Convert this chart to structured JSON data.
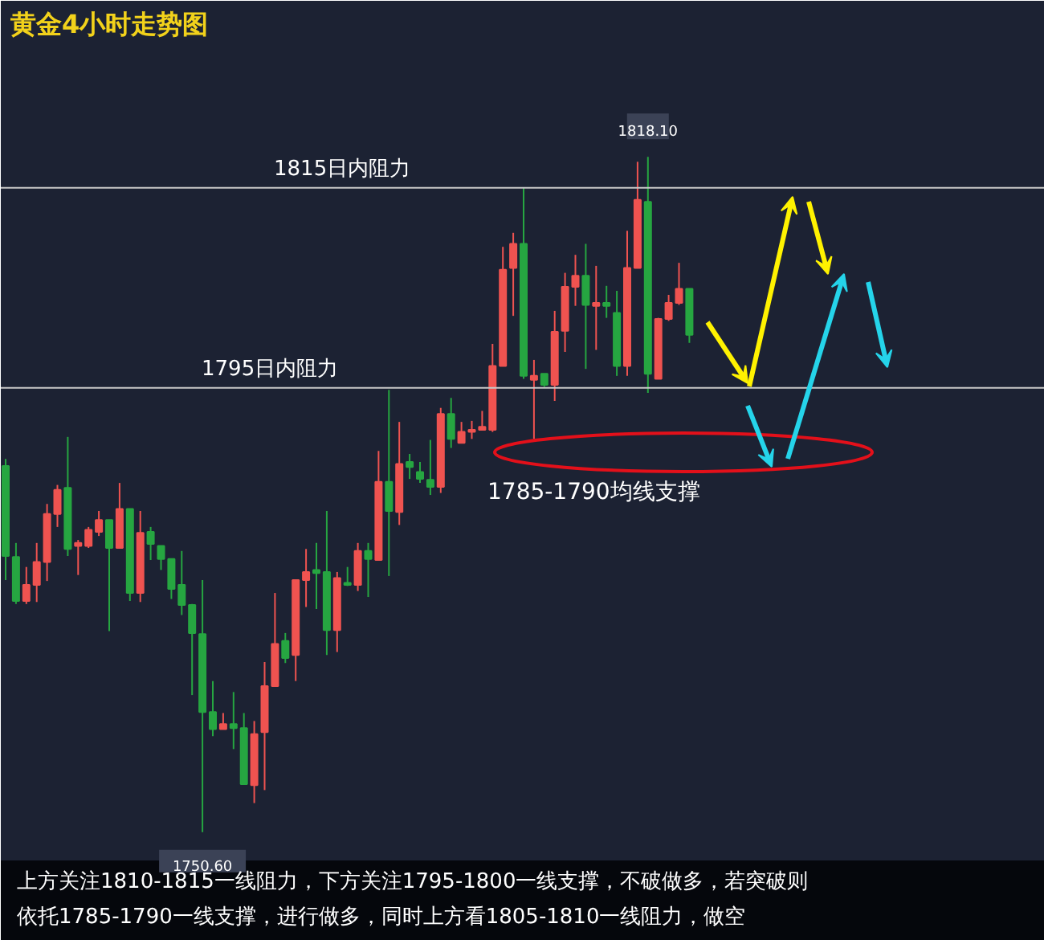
{
  "chart_data": {
    "type": "candlestick",
    "title": "黄金4小时走势图",
    "categories": [
      null,
      null,
      null,
      null,
      null,
      null,
      null,
      null,
      null,
      null,
      null,
      null,
      null,
      null,
      null,
      null,
      null,
      null,
      null,
      null,
      null,
      null,
      null,
      null,
      null,
      null,
      null,
      null,
      null,
      null,
      null,
      null,
      null,
      null,
      null,
      null,
      null,
      null,
      null,
      null,
      null,
      null,
      null,
      null,
      null,
      null,
      null,
      null,
      null,
      null,
      null,
      null,
      null,
      null,
      null,
      null,
      null,
      null,
      null,
      null,
      null,
      null,
      null,
      null,
      null,
      null,
      null
    ],
    "ohlc": [
      [
        1787.2,
        1787.9,
        1775.8,
        1778.2
      ],
      [
        1778.1,
        1779.5,
        1773.4,
        1773.7
      ],
      [
        1773.7,
        1777.1,
        1773.4,
        1775.3
      ],
      [
        1775.3,
        1779.5,
        1773.6,
        1777.6
      ],
      [
        1777.6,
        1783.4,
        1775.7,
        1782.4
      ],
      [
        1782.4,
        1785.3,
        1781.1,
        1784.8
      ],
      [
        1785.0,
        1790.1,
        1778.2,
        1778.9
      ],
      [
        1779.2,
        1779.8,
        1776.3,
        1779.5
      ],
      [
        1779.2,
        1781.1,
        1779.0,
        1780.8
      ],
      [
        1780.6,
        1782.7,
        1780.2,
        1781.8
      ],
      [
        1781.8,
        1781.8,
        1770.7,
        1779.0
      ],
      [
        1779.0,
        1785.5,
        1779.0,
        1782.9
      ],
      [
        1782.9,
        1782.9,
        1773.7,
        1774.5
      ],
      [
        1774.5,
        1782.7,
        1773.6,
        1780.5
      ],
      [
        1780.6,
        1781.1,
        1777.8,
        1779.4
      ],
      [
        1779.2,
        1779.2,
        1776.8,
        1777.9
      ],
      [
        1777.9,
        1777.9,
        1773.9,
        1774.9
      ],
      [
        1775.3,
        1778.7,
        1772.3,
        1773.3
      ],
      [
        1773.3,
        1773.4,
        1764.3,
        1770.5
      ],
      [
        1770.4,
        1775.8,
        1750.6,
        1762.6
      ],
      [
        1762.6,
        1765.7,
        1760.2,
        1760.9
      ],
      [
        1760.9,
        1762.5,
        1760.9,
        1761.4
      ],
      [
        1761.4,
        1764.6,
        1758.9,
        1761.0
      ],
      [
        1761.0,
        1762.5,
        1755.4,
        1755.4
      ],
      [
        1755.3,
        1761.7,
        1753.5,
        1760.4
      ],
      [
        1760.6,
        1767.6,
        1754.8,
        1765.2
      ],
      [
        1765.2,
        1774.5,
        1765.2,
        1769.4
      ],
      [
        1769.7,
        1770.5,
        1767.5,
        1768.0
      ],
      [
        1768.3,
        1775.8,
        1765.7,
        1775.8
      ],
      [
        1775.8,
        1778.9,
        1773.1,
        1776.6
      ],
      [
        1776.8,
        1779.5,
        1772.9,
        1776.5
      ],
      [
        1776.6,
        1782.7,
        1768.3,
        1770.8
      ],
      [
        1770.8,
        1776.6,
        1768.6,
        1776.0
      ],
      [
        1775.5,
        1777.1,
        1775.2,
        1775.3
      ],
      [
        1775.3,
        1779.5,
        1774.7,
        1778.7
      ],
      [
        1778.7,
        1779.5,
        1774.1,
        1777.9
      ],
      [
        1777.8,
        1788.7,
        1777.8,
        1785.6
      ],
      [
        1785.6,
        1794.8,
        1776.2,
        1782.7
      ],
      [
        1782.6,
        1791.6,
        1781.3,
        1787.4
      ],
      [
        1787.6,
        1788.4,
        1785.9,
        1787.1
      ],
      [
        1786.6,
        1787.6,
        1785.5,
        1785.9
      ],
      [
        1785.8,
        1789.8,
        1784.3,
        1785.1
      ],
      [
        1785.1,
        1793.0,
        1784.5,
        1792.4
      ],
      [
        1792.4,
        1794.0,
        1789.0,
        1789.9
      ],
      [
        1789.5,
        1791.6,
        1789.5,
        1790.6
      ],
      [
        1790.6,
        1791.7,
        1789.9,
        1790.8
      ],
      [
        1790.8,
        1792.7,
        1790.8,
        1791.1
      ],
      [
        1790.8,
        1799.4,
        1790.6,
        1797.2
      ],
      [
        1797.2,
        1809.1,
        1797.2,
        1806.8
      ],
      [
        1807.0,
        1810.5,
        1802.2,
        1809.4
      ],
      [
        1809.4,
        1815.0,
        1795.9,
        1796.2
      ],
      [
        1795.8,
        1797.8,
        1789.9,
        1796.2
      ],
      [
        1796.4,
        1796.4,
        1795.1,
        1795.3
      ],
      [
        1795.3,
        1802.7,
        1793.7,
        1800.6
      ],
      [
        1800.7,
        1806.5,
        1798.6,
        1805.1
      ],
      [
        1805.1,
        1808.3,
        1803.2,
        1806.2
      ],
      [
        1806.2,
        1809.4,
        1796.9,
        1803.3
      ],
      [
        1803.2,
        1807.2,
        1798.8,
        1803.5
      ],
      [
        1803.5,
        1805.2,
        1802.0,
        1803.2
      ],
      [
        1802.5,
        1804.7,
        1796.2,
        1797.2
      ],
      [
        1797.2,
        1810.7,
        1796.2,
        1807.0
      ],
      [
        1807.0,
        1817.6,
        1807.0,
        1813.8
      ],
      [
        1813.6,
        1818.1,
        1794.5,
        1796.4
      ],
      [
        1795.9,
        1802.0,
        1795.9,
        1801.9
      ],
      [
        1801.9,
        1804.3,
        1801.7,
        1803.5
      ],
      [
        1803.5,
        1807.5,
        1803.3,
        1804.9
      ],
      [
        1804.9,
        1804.9,
        1799.5,
        1800.3
      ]
    ],
    "colors": [
      "#26a641",
      "#26a641",
      "#ef5350",
      "#ef5350",
      "#ef5350",
      "#ef5350",
      "#26a641",
      "#ef5350",
      "#ef5350",
      "#ef5350",
      "#26a641",
      "#ef5350",
      "#26a641",
      "#ef5350",
      "#26a641",
      "#26a641",
      "#26a641",
      "#26a641",
      "#26a641",
      "#26a641",
      "#26a641",
      "#ef5350",
      "#26a641",
      "#26a641",
      "#ef5350",
      "#ef5350",
      "#ef5350",
      "#26a641",
      "#ef5350",
      "#ef5350",
      "#26a641",
      "#26a641",
      "#ef5350",
      "#26a641",
      "#ef5350",
      "#26a641",
      "#ef5350",
      "#26a641",
      "#ef5350",
      "#26a641",
      "#26a641",
      "#26a641",
      "#ef5350",
      "#26a641",
      "#ef5350",
      "#ef5350",
      "#ef5350",
      "#ef5350",
      "#ef5350",
      "#ef5350",
      "#26a641",
      "#ef5350",
      "#26a641",
      "#ef5350",
      "#ef5350",
      "#ef5350",
      "#26a641",
      "#ef5350",
      "#26a641",
      "#26a641",
      "#ef5350",
      "#ef5350",
      "#26a641",
      "#ef5350",
      "#ef5350",
      "#ef5350",
      "#26a641"
    ],
    "ref_lines": [
      {
        "axis": "y",
        "value": 1815,
        "label": "1815日内阻力",
        "color": "#c8c8c8"
      },
      {
        "axis": "y",
        "value": 1795,
        "label": "1795日内阻力",
        "color": "#c8c8c8"
      }
    ],
    "annotations": [
      {
        "text": "1818.10",
        "y": 1818.1
      },
      {
        "text": "1750.60",
        "y": 1750.6
      },
      "1785-1790均线支撑",
      "上方关注1810-1815一线阻力，下方关注1795-1800一线支撑，不破做多，若突破则",
      "依托1785-1790一线支撑，进行做多，同时上方看1805-1810一线阻力，做空"
    ]
  }
}
